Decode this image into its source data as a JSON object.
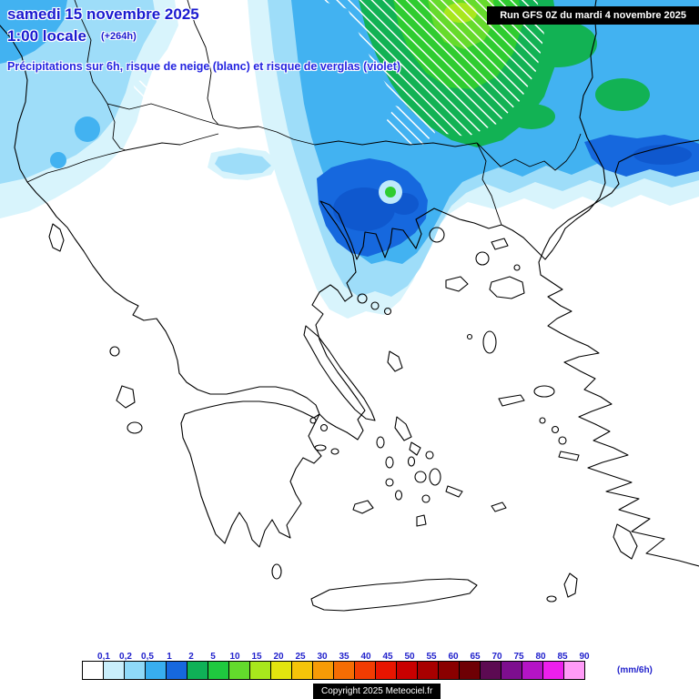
{
  "header": {
    "date_line": "samedi 15 novembre 2025",
    "time_line": "1:00 locale",
    "forecast_offset": "(+264h)",
    "subtitle": "Précipitations sur 6h, risque de neige (blanc) et risque de verglas (violet)",
    "run_info": "Run GFS 0Z du mardi 4 novembre 2025"
  },
  "legend": {
    "unit_label": "(mm/6h)",
    "tick_labels": [
      "0,1",
      "0,2",
      "0,5",
      "1",
      "2",
      "5",
      "10",
      "15",
      "20",
      "25",
      "30",
      "35",
      "40",
      "45",
      "50",
      "55",
      "60",
      "65",
      "70",
      "75",
      "80",
      "85",
      "90"
    ],
    "box_colors": [
      "#FFFFFF",
      "#C9EEFB",
      "#8FD9F8",
      "#38AEEF",
      "#1668DE",
      "#0FB157",
      "#1FC93F",
      "#63DB2C",
      "#A8E71C",
      "#E3E50E",
      "#F5C409",
      "#F79B06",
      "#F66D03",
      "#F23C02",
      "#E81500",
      "#C90000",
      "#A80000",
      "#8A0000",
      "#6E0004",
      "#5C0A52",
      "#7D0E8F",
      "#B414C6",
      "#ED1FED",
      "#FF9BF7"
    ]
  },
  "footer": {
    "copyright": "Copyright 2025 Meteociel.fr"
  },
  "map": {
    "precipitation_colors": {
      "very_light": "#D8F4FC",
      "light": "#9EDDF9",
      "moderate": "#42B2F1",
      "strong_blue": "#1668DE",
      "green_5mm": "#12B254",
      "green_10mm": "#2FCC30",
      "green_15mm": "#66DB2C",
      "yellow_green": "#A9E71D"
    },
    "snow_hatch_color": "#FFFFFF",
    "coastline_color": "#000000"
  }
}
